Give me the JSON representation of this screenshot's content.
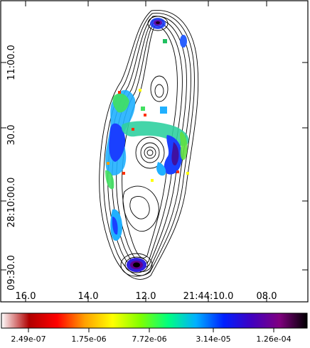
{
  "chart_data": {
    "type": "heatmap",
    "title": "",
    "xlabel": "",
    "ylabel": "",
    "x_tick_labels": [
      "16.0",
      "14.0",
      "12.0",
      "21:44:10.0",
      "08.0"
    ],
    "y_tick_labels": [
      "11:00.0",
      "30.0",
      "28:10:00.0",
      "09:30.0"
    ],
    "colorbar": {
      "scale": "log",
      "range": [
        2e-07,
        0.0002
      ],
      "tick_labels": [
        "2.49e-07",
        "1.75e-06",
        "7.72e-06",
        "3.14e-05",
        "1.26e-04"
      ],
      "colors": [
        "#ffffff",
        "#b00000",
        "#ff0000",
        "#ffa000",
        "#ffff00",
        "#80ff00",
        "#00ff80",
        "#00b0ff",
        "#0020ff",
        "#4000c0",
        "#800080",
        "#000000"
      ]
    },
    "contours": true,
    "contour_color": "#000000"
  }
}
